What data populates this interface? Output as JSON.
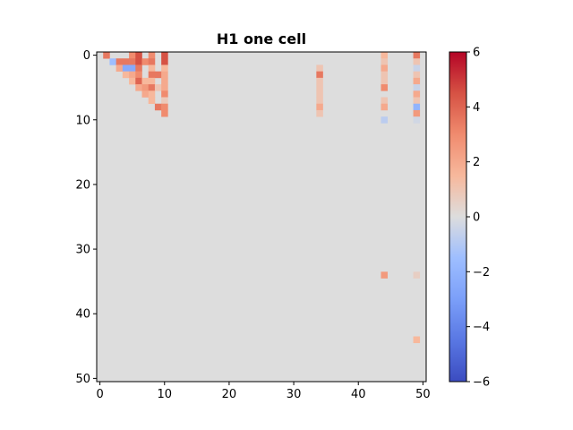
{
  "chart_data": {
    "type": "heatmap",
    "title": "H1 one cell",
    "xlabel": "",
    "ylabel": "",
    "rows": 51,
    "cols": 51,
    "x_ticks": [
      0,
      10,
      20,
      30,
      40,
      50
    ],
    "y_ticks": [
      0,
      10,
      20,
      30,
      40,
      50
    ],
    "x_tick_labels": [
      "0",
      "10",
      "20",
      "30",
      "40",
      "50"
    ],
    "y_tick_labels": [
      "0",
      "10",
      "20",
      "30",
      "40",
      "50"
    ],
    "colormap": "coolwarm",
    "vmin": -6,
    "vmax": 6,
    "colorbar_ticks": [
      6,
      4,
      2,
      0,
      -2,
      -4,
      -6
    ],
    "colorbar_tick_labels": [
      "6",
      "4",
      "2",
      "0",
      "−2",
      "−4",
      "−6"
    ],
    "background_value": 0,
    "cells": [
      {
        "row": 0,
        "col": 1,
        "value": 3.5
      },
      {
        "row": 0,
        "col": 5,
        "value": 3.0
      },
      {
        "row": 0,
        "col": 6,
        "value": 4.5
      },
      {
        "row": 0,
        "col": 8,
        "value": 3.0
      },
      {
        "row": 0,
        "col": 10,
        "value": 4.5
      },
      {
        "row": 0,
        "col": 44,
        "value": 1.5
      },
      {
        "row": 0,
        "col": 49,
        "value": 3.5
      },
      {
        "row": 1,
        "col": 2,
        "value": -1.5
      },
      {
        "row": 1,
        "col": 3,
        "value": 3.5
      },
      {
        "row": 1,
        "col": 4,
        "value": 3.5
      },
      {
        "row": 1,
        "col": 5,
        "value": 3.5
      },
      {
        "row": 1,
        "col": 6,
        "value": 4.5
      },
      {
        "row": 1,
        "col": 7,
        "value": 3.0
      },
      {
        "row": 1,
        "col": 8,
        "value": 3.5
      },
      {
        "row": 1,
        "col": 10,
        "value": 4.5
      },
      {
        "row": 1,
        "col": 44,
        "value": 1.0
      },
      {
        "row": 1,
        "col": 49,
        "value": 1.0
      },
      {
        "row": 2,
        "col": 3,
        "value": 2.0
      },
      {
        "row": 2,
        "col": 4,
        "value": -2.5
      },
      {
        "row": 2,
        "col": 5,
        "value": -2.5
      },
      {
        "row": 2,
        "col": 6,
        "value": 3.5
      },
      {
        "row": 2,
        "col": 8,
        "value": 1.5
      },
      {
        "row": 2,
        "col": 10,
        "value": 1.5
      },
      {
        "row": 2,
        "col": 34,
        "value": 1.0
      },
      {
        "row": 2,
        "col": 44,
        "value": 2.0
      },
      {
        "row": 2,
        "col": 49,
        "value": -0.5
      },
      {
        "row": 3,
        "col": 4,
        "value": 1.5
      },
      {
        "row": 3,
        "col": 5,
        "value": 2.0
      },
      {
        "row": 3,
        "col": 6,
        "value": 3.0
      },
      {
        "row": 3,
        "col": 8,
        "value": 3.5
      },
      {
        "row": 3,
        "col": 9,
        "value": 3.5
      },
      {
        "row": 3,
        "col": 10,
        "value": 2.0
      },
      {
        "row": 3,
        "col": 34,
        "value": 3.5
      },
      {
        "row": 3,
        "col": 44,
        "value": 1.0
      },
      {
        "row": 3,
        "col": 49,
        "value": 1.0
      },
      {
        "row": 4,
        "col": 5,
        "value": 1.5
      },
      {
        "row": 4,
        "col": 6,
        "value": 4.0
      },
      {
        "row": 4,
        "col": 7,
        "value": 1.5
      },
      {
        "row": 4,
        "col": 8,
        "value": 1.5
      },
      {
        "row": 4,
        "col": 10,
        "value": 2.0
      },
      {
        "row": 4,
        "col": 34,
        "value": 1.0
      },
      {
        "row": 4,
        "col": 44,
        "value": 1.0
      },
      {
        "row": 4,
        "col": 49,
        "value": 2.0
      },
      {
        "row": 5,
        "col": 6,
        "value": 2.0
      },
      {
        "row": 5,
        "col": 7,
        "value": 2.5
      },
      {
        "row": 5,
        "col": 8,
        "value": 3.5
      },
      {
        "row": 5,
        "col": 9,
        "value": 1.0
      },
      {
        "row": 5,
        "col": 10,
        "value": 2.0
      },
      {
        "row": 5,
        "col": 34,
        "value": 1.0
      },
      {
        "row": 5,
        "col": 44,
        "value": 3.0
      },
      {
        "row": 5,
        "col": 49,
        "value": -0.5
      },
      {
        "row": 6,
        "col": 7,
        "value": 2.0
      },
      {
        "row": 6,
        "col": 8,
        "value": 1.5
      },
      {
        "row": 6,
        "col": 10,
        "value": 3.0
      },
      {
        "row": 6,
        "col": 34,
        "value": 1.0
      },
      {
        "row": 6,
        "col": 49,
        "value": 2.0
      },
      {
        "row": 7,
        "col": 8,
        "value": 1.5
      },
      {
        "row": 7,
        "col": 10,
        "value": 0.8
      },
      {
        "row": 7,
        "col": 34,
        "value": 1.0
      },
      {
        "row": 7,
        "col": 44,
        "value": 1.0
      },
      {
        "row": 7,
        "col": 49,
        "value": 1.0
      },
      {
        "row": 8,
        "col": 9,
        "value": 3.5
      },
      {
        "row": 8,
        "col": 10,
        "value": 3.0
      },
      {
        "row": 8,
        "col": 34,
        "value": 2.0
      },
      {
        "row": 8,
        "col": 44,
        "value": 2.0
      },
      {
        "row": 8,
        "col": 49,
        "value": -2.0
      },
      {
        "row": 9,
        "col": 10,
        "value": 3.0
      },
      {
        "row": 9,
        "col": 34,
        "value": 1.0
      },
      {
        "row": 9,
        "col": 49,
        "value": 2.5
      },
      {
        "row": 10,
        "col": 44,
        "value": -0.8
      },
      {
        "row": 10,
        "col": 49,
        "value": -0.3
      },
      {
        "row": 34,
        "col": 44,
        "value": 2.5
      },
      {
        "row": 34,
        "col": 49,
        "value": 0.6
      },
      {
        "row": 44,
        "col": 49,
        "value": 1.5
      }
    ]
  }
}
